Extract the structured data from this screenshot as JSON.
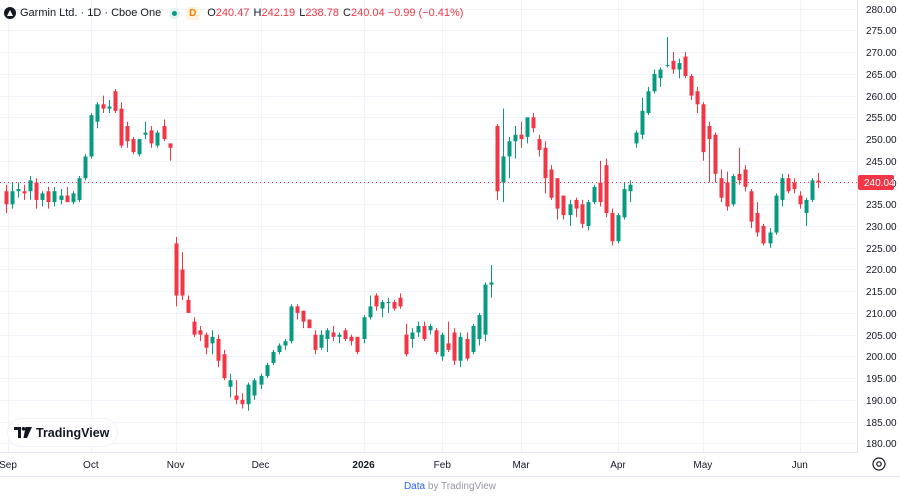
{
  "legend": {
    "symbol": "Garmin Ltd. · 1D · Cboe One",
    "badge": "D",
    "o_label": "O",
    "o_value": "240.47",
    "h_label": "H",
    "h_value": "242.19",
    "l_label": "L",
    "l_value": "238.78",
    "c_label": "C",
    "c_value": "240.04",
    "change": "−0.99 (−0.41%)"
  },
  "logo_text": "TradingView",
  "footer": {
    "source": "Data",
    "by": "by TradingView"
  },
  "colors": {
    "up": "#089981",
    "down": "#f23645",
    "grid": "#f0f3fa",
    "text": "#131722"
  },
  "chart_data": {
    "type": "candlestick",
    "ylim": [
      178,
      282
    ],
    "y_ticks": [
      180,
      185,
      190,
      195,
      200,
      205,
      210,
      215,
      220,
      225,
      230,
      235,
      240,
      245,
      250,
      255,
      260,
      265,
      270,
      275,
      280
    ],
    "x_ticks": [
      "Sep",
      "Oct",
      "Nov",
      "Dec",
      "2026",
      "Feb",
      "Mar",
      "Apr",
      "May",
      "Jun"
    ],
    "last_price": 240.04,
    "last_label": "240.04",
    "grid": true,
    "candles": [
      {
        "x": "Sep",
        "o": 238,
        "h": 239.5,
        "l": 233,
        "c": 235
      },
      {
        "x": "Sep",
        "o": 235,
        "h": 240,
        "l": 234,
        "c": 238
      },
      {
        "x": "Sep",
        "o": 238,
        "h": 240,
        "l": 236.5,
        "c": 238.5
      },
      {
        "x": "Sep",
        "o": 238,
        "h": 239.5,
        "l": 236,
        "c": 237.5
      },
      {
        "x": "Sep",
        "o": 238,
        "h": 241.5,
        "l": 236,
        "c": 240.5
      },
      {
        "x": "Sep",
        "o": 240,
        "h": 241,
        "l": 234,
        "c": 236
      },
      {
        "x": "Sep",
        "o": 236,
        "h": 238,
        "l": 234.5,
        "c": 237.5
      },
      {
        "x": "Sep",
        "o": 238,
        "h": 239,
        "l": 234,
        "c": 235.5
      },
      {
        "x": "Sep",
        "o": 235.5,
        "h": 239,
        "l": 234.5,
        "c": 238
      },
      {
        "x": "Sep",
        "o": 236,
        "h": 238.5,
        "l": 235,
        "c": 237
      },
      {
        "x": "Sep",
        "o": 237,
        "h": 239,
        "l": 235.5,
        "c": 235.5
      },
      {
        "x": "Sep",
        "o": 235.5,
        "h": 238,
        "l": 235,
        "c": 237.5
      },
      {
        "x": "Sep",
        "o": 236,
        "h": 241.5,
        "l": 235.5,
        "c": 241
      },
      {
        "x": "Sep",
        "o": 241,
        "h": 246.5,
        "l": 240.5,
        "c": 246
      },
      {
        "x": "Oct",
        "o": 246,
        "h": 256,
        "l": 245.5,
        "c": 255.5
      },
      {
        "x": "Oct",
        "o": 254,
        "h": 258.5,
        "l": 252.5,
        "c": 258
      },
      {
        "x": "Oct",
        "o": 258,
        "h": 260,
        "l": 256,
        "c": 257
      },
      {
        "x": "Oct",
        "o": 257,
        "h": 259,
        "l": 256,
        "c": 257.5
      },
      {
        "x": "Oct",
        "o": 261,
        "h": 261.5,
        "l": 256,
        "c": 256.5
      },
      {
        "x": "Oct",
        "o": 257,
        "h": 258.5,
        "l": 248,
        "c": 248.5
      },
      {
        "x": "Oct",
        "o": 253,
        "h": 254,
        "l": 248,
        "c": 249.5
      },
      {
        "x": "Oct",
        "o": 250,
        "h": 250.5,
        "l": 246.5,
        "c": 247
      },
      {
        "x": "Oct",
        "o": 246.5,
        "h": 250,
        "l": 246,
        "c": 250
      },
      {
        "x": "Oct",
        "o": 251,
        "h": 254,
        "l": 250,
        "c": 251.5
      },
      {
        "x": "Oct",
        "o": 252,
        "h": 253,
        "l": 248,
        "c": 249
      },
      {
        "x": "Oct",
        "o": 248.5,
        "h": 252,
        "l": 248,
        "c": 251.5
      },
      {
        "x": "Oct",
        "o": 253,
        "h": 254.5,
        "l": 249.5,
        "c": 250
      },
      {
        "x": "Oct",
        "o": 249,
        "h": 249,
        "l": 245,
        "c": 248
      },
      {
        "x": "Nov",
        "o": 226,
        "h": 227.5,
        "l": 211.5,
        "c": 214
      },
      {
        "x": "Nov",
        "o": 220,
        "h": 224,
        "l": 213,
        "c": 214
      },
      {
        "x": "Nov",
        "o": 213,
        "h": 214,
        "l": 210.5,
        "c": 210
      },
      {
        "x": "Nov",
        "o": 208,
        "h": 209,
        "l": 204.5,
        "c": 205
      },
      {
        "x": "Nov",
        "o": 206,
        "h": 207,
        "l": 203.5,
        "c": 205
      },
      {
        "x": "Nov",
        "o": 205,
        "h": 205.5,
        "l": 200.5,
        "c": 202
      },
      {
        "x": "Nov",
        "o": 203,
        "h": 206,
        "l": 200.5,
        "c": 204.5
      },
      {
        "x": "Nov",
        "o": 204,
        "h": 205,
        "l": 197.5,
        "c": 199
      },
      {
        "x": "Nov",
        "o": 200.5,
        "h": 201.5,
        "l": 194.5,
        "c": 195
      },
      {
        "x": "Nov",
        "o": 193,
        "h": 196,
        "l": 190.5,
        "c": 194.5
      },
      {
        "x": "Nov",
        "o": 191,
        "h": 194.5,
        "l": 189,
        "c": 190
      },
      {
        "x": "Nov",
        "o": 190,
        "h": 191.5,
        "l": 188,
        "c": 189
      },
      {
        "x": "Nov",
        "o": 189,
        "h": 194,
        "l": 187.5,
        "c": 193.5
      },
      {
        "x": "Nov",
        "o": 191,
        "h": 195,
        "l": 190,
        "c": 194.5
      },
      {
        "x": "Dec",
        "o": 193.5,
        "h": 196,
        "l": 192.5,
        "c": 195.5
      },
      {
        "x": "Dec",
        "o": 195.5,
        "h": 198.5,
        "l": 195,
        "c": 198
      },
      {
        "x": "Dec",
        "o": 198.5,
        "h": 201.5,
        "l": 198,
        "c": 201
      },
      {
        "x": "Dec",
        "o": 201,
        "h": 203,
        "l": 200.5,
        "c": 202.5
      },
      {
        "x": "Dec",
        "o": 202.5,
        "h": 204,
        "l": 201.5,
        "c": 203.5
      },
      {
        "x": "Dec",
        "o": 203.5,
        "h": 212,
        "l": 203,
        "c": 211.5
      },
      {
        "x": "Dec",
        "o": 211.5,
        "h": 212,
        "l": 208.5,
        "c": 210
      },
      {
        "x": "Dec",
        "o": 210.5,
        "h": 210.5,
        "l": 206.5,
        "c": 208
      },
      {
        "x": "Dec",
        "o": 208.5,
        "h": 208.5,
        "l": 206.5,
        "c": 206.5
      },
      {
        "x": "Dec",
        "o": 205,
        "h": 206,
        "l": 200.5,
        "c": 201.5
      },
      {
        "x": "Dec",
        "o": 202,
        "h": 206,
        "l": 201.5,
        "c": 205
      },
      {
        "x": "Dec",
        "o": 204,
        "h": 206.5,
        "l": 201,
        "c": 206
      },
      {
        "x": "Dec",
        "o": 205.5,
        "h": 207,
        "l": 203.5,
        "c": 204.5
      },
      {
        "x": "Dec",
        "o": 204.5,
        "h": 205.5,
        "l": 203,
        "c": 205
      },
      {
        "x": "Dec",
        "o": 206,
        "h": 206.5,
        "l": 203.5,
        "c": 204
      },
      {
        "x": "Dec",
        "o": 204.5,
        "h": 205,
        "l": 202.5,
        "c": 203.5
      },
      {
        "x": "Dec",
        "o": 204.5,
        "h": 204.5,
        "l": 200.5,
        "c": 201
      },
      {
        "x": "2026",
        "o": 204,
        "h": 209.5,
        "l": 203,
        "c": 209
      },
      {
        "x": "2026",
        "o": 209,
        "h": 214,
        "l": 208.5,
        "c": 211.5
      },
      {
        "x": "2026",
        "o": 214,
        "h": 214.5,
        "l": 210.5,
        "c": 211.5
      },
      {
        "x": "2026",
        "o": 211,
        "h": 213,
        "l": 209,
        "c": 212.5
      },
      {
        "x": "2026",
        "o": 212.5,
        "h": 213.5,
        "l": 210,
        "c": 212.5
      },
      {
        "x": "2026",
        "o": 212.5,
        "h": 213,
        "l": 210.5,
        "c": 211
      },
      {
        "x": "2026",
        "o": 213.5,
        "h": 214.5,
        "l": 211,
        "c": 211.5
      },
      {
        "x": "2026",
        "o": 205,
        "h": 207.5,
        "l": 200,
        "c": 200.5
      },
      {
        "x": "2026",
        "o": 204,
        "h": 206.5,
        "l": 202,
        "c": 205.5
      },
      {
        "x": "2026",
        "o": 205.5,
        "h": 208,
        "l": 204.5,
        "c": 207
      },
      {
        "x": "2026",
        "o": 207,
        "h": 208,
        "l": 203.5,
        "c": 204
      },
      {
        "x": "2026",
        "o": 206,
        "h": 207.5,
        "l": 205,
        "c": 207
      },
      {
        "x": "2026",
        "o": 206,
        "h": 206.5,
        "l": 200.5,
        "c": 201
      },
      {
        "x": "Feb",
        "o": 200,
        "h": 205.5,
        "l": 199,
        "c": 205
      },
      {
        "x": "Feb",
        "o": 203,
        "h": 208,
        "l": 201,
        "c": 201.5
      },
      {
        "x": "Feb",
        "o": 205.5,
        "h": 206.5,
        "l": 198,
        "c": 199
      },
      {
        "x": "Feb",
        "o": 199,
        "h": 205.5,
        "l": 197.5,
        "c": 204.5
      },
      {
        "x": "Feb",
        "o": 204,
        "h": 205.5,
        "l": 199,
        "c": 199.5
      },
      {
        "x": "Feb",
        "o": 201,
        "h": 207.5,
        "l": 200.5,
        "c": 207
      },
      {
        "x": "Feb",
        "o": 204,
        "h": 210,
        "l": 202.5,
        "c": 209.5
      },
      {
        "x": "Feb",
        "o": 205,
        "h": 217,
        "l": 203.5,
        "c": 216.5
      },
      {
        "x": "Feb",
        "o": 216.5,
        "h": 221,
        "l": 213.5,
        "c": 217
      },
      {
        "x": "Feb",
        "o": 253,
        "h": 253.5,
        "l": 236,
        "c": 238
      },
      {
        "x": "Feb",
        "o": 240,
        "h": 257,
        "l": 235.5,
        "c": 246
      },
      {
        "x": "Feb",
        "o": 246,
        "h": 250.5,
        "l": 241,
        "c": 249.5
      },
      {
        "x": "Feb",
        "o": 249.5,
        "h": 253,
        "l": 245.5,
        "c": 251
      },
      {
        "x": "Mar",
        "o": 251,
        "h": 254,
        "l": 248,
        "c": 250
      },
      {
        "x": "Mar",
        "o": 250.5,
        "h": 255,
        "l": 249,
        "c": 255
      },
      {
        "x": "Mar",
        "o": 255,
        "h": 256,
        "l": 251.5,
        "c": 252.5
      },
      {
        "x": "Mar",
        "o": 250,
        "h": 251,
        "l": 246,
        "c": 247.5
      },
      {
        "x": "Mar",
        "o": 248,
        "h": 249.5,
        "l": 237.5,
        "c": 241
      },
      {
        "x": "Mar",
        "o": 243,
        "h": 244,
        "l": 236,
        "c": 236.5
      },
      {
        "x": "Mar",
        "o": 241,
        "h": 241,
        "l": 231.5,
        "c": 234
      },
      {
        "x": "Mar",
        "o": 237,
        "h": 237,
        "l": 231.5,
        "c": 232.5
      },
      {
        "x": "Mar",
        "o": 232.5,
        "h": 236,
        "l": 230,
        "c": 235
      },
      {
        "x": "Mar",
        "o": 236,
        "h": 236.5,
        "l": 232,
        "c": 234
      },
      {
        "x": "Mar",
        "o": 235,
        "h": 236,
        "l": 229.5,
        "c": 230.5
      },
      {
        "x": "Mar",
        "o": 230,
        "h": 236,
        "l": 229,
        "c": 235.5
      },
      {
        "x": "Mar",
        "o": 235.5,
        "h": 239.5,
        "l": 235,
        "c": 239
      },
      {
        "x": "Mar",
        "o": 240,
        "h": 245,
        "l": 234.5,
        "c": 235.5
      },
      {
        "x": "Mar",
        "o": 244,
        "h": 245.5,
        "l": 232,
        "c": 233
      },
      {
        "x": "Mar",
        "o": 233,
        "h": 234,
        "l": 225.5,
        "c": 226.5
      },
      {
        "x": "Apr",
        "o": 226.5,
        "h": 233,
        "l": 226,
        "c": 232.5
      },
      {
        "x": "Apr",
        "o": 232,
        "h": 240,
        "l": 231.5,
        "c": 238.5
      },
      {
        "x": "Apr",
        "o": 238,
        "h": 240.5,
        "l": 235.5,
        "c": 239.5
      },
      {
        "x": "Apr",
        "o": 249,
        "h": 252,
        "l": 248,
        "c": 251.5
      },
      {
        "x": "Apr",
        "o": 251,
        "h": 259.5,
        "l": 250,
        "c": 256.5
      },
      {
        "x": "Apr",
        "o": 256,
        "h": 262,
        "l": 255.5,
        "c": 261
      },
      {
        "x": "Apr",
        "o": 261,
        "h": 266,
        "l": 260.5,
        "c": 265
      },
      {
        "x": "Apr",
        "o": 264,
        "h": 266.5,
        "l": 262,
        "c": 266
      },
      {
        "x": "Apr",
        "o": 267,
        "h": 273.5,
        "l": 266.5,
        "c": 267
      },
      {
        "x": "Apr",
        "o": 268,
        "h": 270,
        "l": 265,
        "c": 266
      },
      {
        "x": "Apr",
        "o": 266,
        "h": 268.5,
        "l": 264,
        "c": 267.5
      },
      {
        "x": "Apr",
        "o": 269,
        "h": 270,
        "l": 264,
        "c": 264.5
      },
      {
        "x": "Apr",
        "o": 264.5,
        "h": 265,
        "l": 259,
        "c": 260
      },
      {
        "x": "Apr",
        "o": 261,
        "h": 262,
        "l": 256,
        "c": 258
      },
      {
        "x": "May",
        "o": 258,
        "h": 258.5,
        "l": 245,
        "c": 247
      },
      {
        "x": "May",
        "o": 253,
        "h": 254,
        "l": 240,
        "c": 250
      },
      {
        "x": "May",
        "o": 251,
        "h": 251.5,
        "l": 240,
        "c": 242
      },
      {
        "x": "May",
        "o": 241,
        "h": 243,
        "l": 235.5,
        "c": 236.5
      },
      {
        "x": "May",
        "o": 240,
        "h": 242.5,
        "l": 233.5,
        "c": 234.5
      },
      {
        "x": "May",
        "o": 235,
        "h": 242,
        "l": 234.5,
        "c": 241.5
      },
      {
        "x": "May",
        "o": 242,
        "h": 248,
        "l": 239.5,
        "c": 240.5
      },
      {
        "x": "May",
        "o": 243,
        "h": 244,
        "l": 238,
        "c": 239
      },
      {
        "x": "May",
        "o": 238,
        "h": 238.5,
        "l": 229.5,
        "c": 231
      },
      {
        "x": "May",
        "o": 233,
        "h": 235.5,
        "l": 227.5,
        "c": 228.5
      },
      {
        "x": "May",
        "o": 230,
        "h": 230.5,
        "l": 225.5,
        "c": 226
      },
      {
        "x": "May",
        "o": 226,
        "h": 229.5,
        "l": 225,
        "c": 228.5
      },
      {
        "x": "May",
        "o": 228.5,
        "h": 237.5,
        "l": 228,
        "c": 237
      },
      {
        "x": "May",
        "o": 236,
        "h": 242,
        "l": 234.5,
        "c": 241
      },
      {
        "x": "May",
        "o": 241,
        "h": 242,
        "l": 237.5,
        "c": 238
      },
      {
        "x": "May",
        "o": 240,
        "h": 241,
        "l": 237.5,
        "c": 238.5
      },
      {
        "x": "Jun",
        "o": 237,
        "h": 238,
        "l": 234,
        "c": 235
      },
      {
        "x": "Jun",
        "o": 233,
        "h": 236.5,
        "l": 230,
        "c": 236
      },
      {
        "x": "Jun",
        "o": 236,
        "h": 241,
        "l": 235.5,
        "c": 240.5
      },
      {
        "x": "Jun",
        "o": 240.47,
        "h": 242.19,
        "l": 238.78,
        "c": 240.04
      }
    ]
  }
}
